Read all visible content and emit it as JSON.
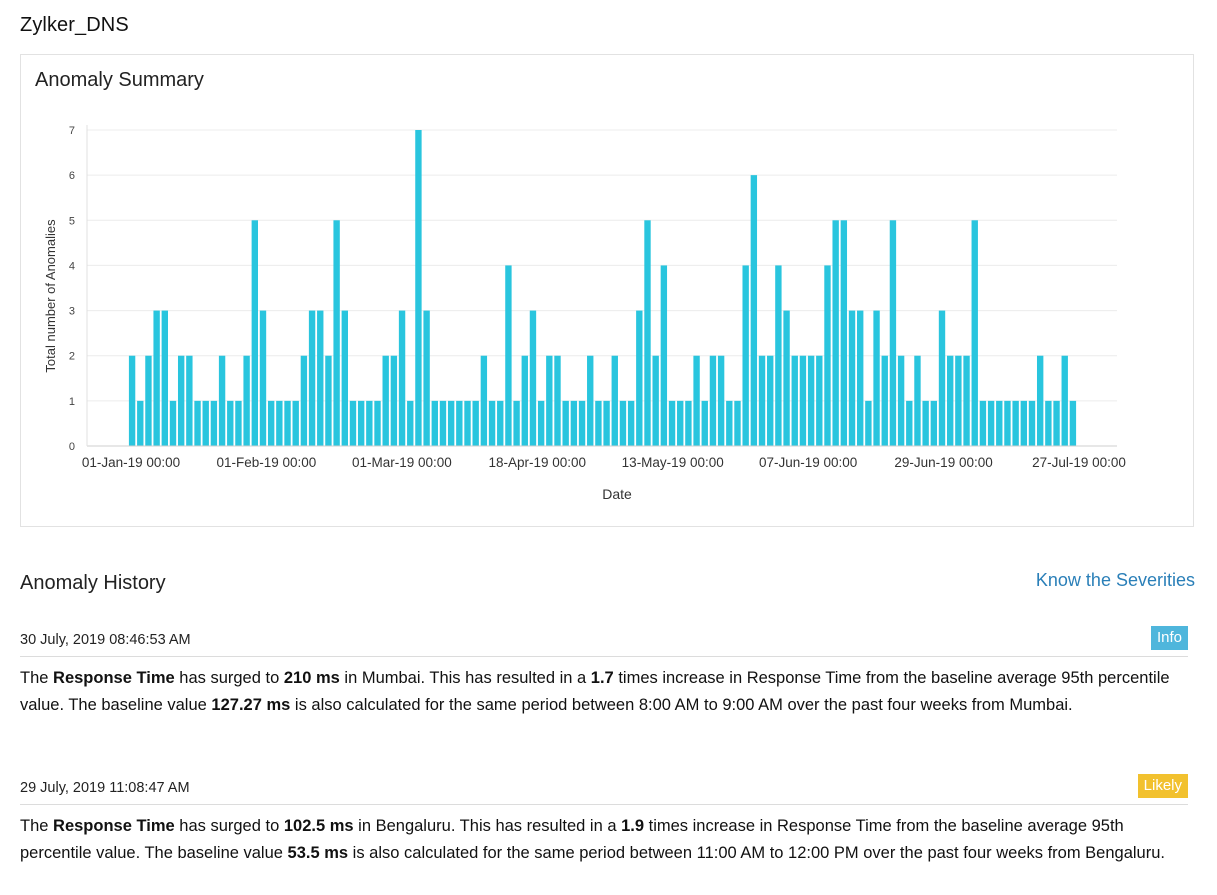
{
  "app": {
    "title": "Zylker_DNS"
  },
  "summary": {
    "title": "Anomaly Summary",
    "accent": "#29c5de"
  },
  "chart_data": {
    "type": "bar",
    "title": "Anomaly Summary",
    "xlabel": "Date",
    "ylabel": "Total number of Anomalies",
    "ylim": [
      0,
      7
    ],
    "yticks": [
      "0",
      "1",
      "2",
      "3",
      "4",
      "5",
      "6",
      "7"
    ],
    "xtick_labels": [
      "01-Jan-19 00:00",
      "01-Feb-19 00:00",
      "01-Mar-19 00:00",
      "18-Apr-19 00:00",
      "13-May-19 00:00",
      "07-Jun-19 00:00",
      "29-Jun-19 00:00",
      "27-Jul-19 00:00"
    ],
    "values": [
      2,
      1,
      2,
      3,
      3,
      1,
      2,
      2,
      1,
      1,
      1,
      2,
      1,
      1,
      2,
      5,
      3,
      1,
      1,
      1,
      1,
      2,
      3,
      3,
      2,
      5,
      3,
      1,
      1,
      1,
      1,
      2,
      2,
      3,
      1,
      7,
      3,
      1,
      1,
      1,
      1,
      1,
      1,
      2,
      1,
      1,
      4,
      1,
      2,
      3,
      1,
      2,
      2,
      1,
      1,
      1,
      2,
      1,
      1,
      2,
      1,
      1,
      3,
      5,
      2,
      4,
      1,
      1,
      1,
      2,
      1,
      2,
      2,
      1,
      1,
      4,
      6,
      2,
      2,
      4,
      3,
      2,
      2,
      2,
      2,
      4,
      5,
      5,
      3,
      3,
      1,
      3,
      2,
      5,
      2,
      1,
      2,
      1,
      1,
      3,
      2,
      2,
      2,
      5,
      1,
      1,
      1,
      1,
      1,
      1,
      1,
      2,
      1,
      1,
      2,
      1
    ],
    "color": "#29c5de",
    "grid": true
  },
  "history": {
    "title": "Anomaly History",
    "know_link": "Know the Severities",
    "entries": [
      {
        "time": "30 July, 2019 08:46:53 AM",
        "badge": "Info",
        "badge_color": "#4fb6dc",
        "parts": [
          {
            "t": "The ",
            "b": false
          },
          {
            "t": "Response Time",
            "b": true
          },
          {
            "t": " has surged to ",
            "b": false
          },
          {
            "t": "210 ms",
            "b": true
          },
          {
            "t": " in Mumbai. This has resulted in a ",
            "b": false
          },
          {
            "t": "1.7",
            "b": true
          },
          {
            "t": " times increase in Response Time from the baseline average 95th percentile value. The baseline value ",
            "b": false
          },
          {
            "t": "127.27 ms",
            "b": true
          },
          {
            "t": " is also calculated for the same period between 8:00 AM to 9:00 AM over the past four weeks from Mumbai.",
            "b": false
          }
        ]
      },
      {
        "time": "29 July, 2019 11:08:47 AM",
        "badge": "Likely",
        "badge_color": "#f2c12e",
        "parts": [
          {
            "t": "The ",
            "b": false
          },
          {
            "t": "Response Time",
            "b": true
          },
          {
            "t": " has surged to ",
            "b": false
          },
          {
            "t": "102.5 ms",
            "b": true
          },
          {
            "t": " in Bengaluru. This has resulted in a ",
            "b": false
          },
          {
            "t": "1.9",
            "b": true
          },
          {
            "t": " times increase in Response Time from the baseline average 95th percentile value. The baseline value ",
            "b": false
          },
          {
            "t": "53.5 ms",
            "b": true
          },
          {
            "t": " is also calculated for the same period between 11:00 AM to 12:00 PM over the past four weeks from Bengaluru.",
            "b": false
          }
        ]
      }
    ]
  }
}
